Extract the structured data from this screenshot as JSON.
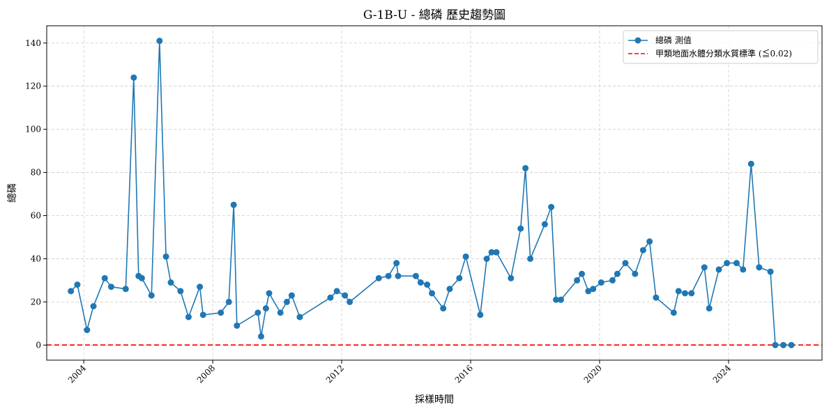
{
  "chart_data": {
    "type": "line",
    "title": "G-1B-U - 總磷 歷史趨勢圖",
    "xlabel": "採樣時間",
    "ylabel": "總磷",
    "xlim": [
      2002.85,
      2026.9
    ],
    "ylim": [
      -7,
      148
    ],
    "x_ticks": [
      {
        "value": 2004,
        "label": "2004"
      },
      {
        "value": 2008,
        "label": "2008"
      },
      {
        "value": 2012,
        "label": "2012"
      },
      {
        "value": 2016,
        "label": "2016"
      },
      {
        "value": 2020,
        "label": "2020"
      },
      {
        "value": 2024,
        "label": "2024"
      }
    ],
    "y_ticks": [
      0,
      20,
      40,
      60,
      80,
      100,
      120,
      140
    ],
    "grid": true,
    "legend_position": "top-right",
    "series": [
      {
        "name": "總磷 測值",
        "color": "#1f77b4",
        "marker": "circle",
        "points": [
          [
            2003.6,
            25
          ],
          [
            2003.8,
            28
          ],
          [
            2004.1,
            7
          ],
          [
            2004.3,
            18
          ],
          [
            2004.65,
            31
          ],
          [
            2004.85,
            27
          ],
          [
            2005.3,
            26
          ],
          [
            2005.55,
            124
          ],
          [
            2005.7,
            32
          ],
          [
            2005.8,
            31
          ],
          [
            2006.1,
            23
          ],
          [
            2006.35,
            141
          ],
          [
            2006.55,
            41
          ],
          [
            2006.7,
            29
          ],
          [
            2007.0,
            25
          ],
          [
            2007.25,
            13
          ],
          [
            2007.6,
            27
          ],
          [
            2007.7,
            14
          ],
          [
            2008.25,
            15
          ],
          [
            2008.5,
            20
          ],
          [
            2008.65,
            65
          ],
          [
            2008.75,
            9
          ],
          [
            2009.4,
            15
          ],
          [
            2009.5,
            4
          ],
          [
            2009.65,
            17
          ],
          [
            2009.75,
            24
          ],
          [
            2010.1,
            15
          ],
          [
            2010.3,
            20
          ],
          [
            2010.45,
            23
          ],
          [
            2010.7,
            13
          ],
          [
            2011.65,
            22
          ],
          [
            2011.85,
            25
          ],
          [
            2012.1,
            23
          ],
          [
            2012.25,
            20
          ],
          [
            2013.15,
            31
          ],
          [
            2013.45,
            32
          ],
          [
            2013.7,
            38
          ],
          [
            2013.75,
            32
          ],
          [
            2014.3,
            32
          ],
          [
            2014.45,
            29
          ],
          [
            2014.65,
            28
          ],
          [
            2014.8,
            24
          ],
          [
            2015.15,
            17
          ],
          [
            2015.35,
            26
          ],
          [
            2015.65,
            31
          ],
          [
            2015.85,
            41
          ],
          [
            2016.3,
            14
          ],
          [
            2016.5,
            40
          ],
          [
            2016.65,
            43
          ],
          [
            2016.8,
            43
          ],
          [
            2017.25,
            31
          ],
          [
            2017.55,
            54
          ],
          [
            2017.7,
            82
          ],
          [
            2017.85,
            40
          ],
          [
            2018.3,
            56
          ],
          [
            2018.5,
            64
          ],
          [
            2018.65,
            21
          ],
          [
            2018.8,
            21
          ],
          [
            2019.3,
            30
          ],
          [
            2019.45,
            33
          ],
          [
            2019.65,
            25
          ],
          [
            2019.8,
            26
          ],
          [
            2020.05,
            29
          ],
          [
            2020.4,
            30
          ],
          [
            2020.55,
            33
          ],
          [
            2020.8,
            38
          ],
          [
            2021.1,
            33
          ],
          [
            2021.35,
            44
          ],
          [
            2021.55,
            48
          ],
          [
            2021.75,
            22
          ],
          [
            2022.3,
            15
          ],
          [
            2022.45,
            25
          ],
          [
            2022.65,
            24
          ],
          [
            2022.85,
            24
          ],
          [
            2023.25,
            36
          ],
          [
            2023.4,
            17
          ],
          [
            2023.7,
            35
          ],
          [
            2023.95,
            38
          ],
          [
            2024.25,
            38
          ],
          [
            2024.45,
            35
          ],
          [
            2024.7,
            84
          ],
          [
            2024.95,
            36
          ],
          [
            2025.3,
            34
          ],
          [
            2025.45,
            0
          ],
          [
            2025.7,
            0
          ],
          [
            2025.95,
            0
          ]
        ]
      }
    ],
    "reference_line": {
      "name": "甲類地面水體分類水質標準 (≦0.02)",
      "y": 0.02,
      "color": "#ff0000",
      "style": "dashed"
    }
  }
}
